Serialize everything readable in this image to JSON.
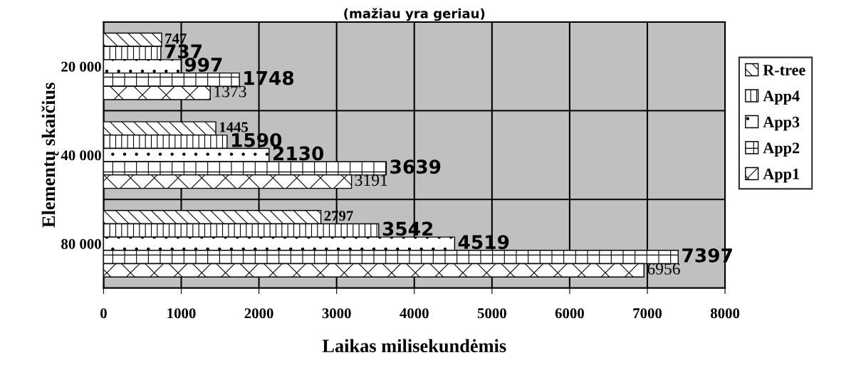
{
  "chart_data": {
    "type": "bar",
    "orientation": "horizontal",
    "title": "(mažiau yra geriau)",
    "xlabel": "Laikas milisekundėmis",
    "ylabel": "Elementų skaičius",
    "categories": [
      "20 000",
      "40 000",
      "80 000"
    ],
    "series": [
      {
        "name": "R-tree",
        "color": "#000000",
        "values": [
          747,
          1445,
          2797
        ]
      },
      {
        "name": "App4",
        "color": "#000000",
        "values": [
          737,
          1590,
          3542
        ]
      },
      {
        "name": "App3",
        "color": "#000000",
        "values": [
          997,
          2130,
          4519
        ]
      },
      {
        "name": "App2",
        "color": "#000000",
        "values": [
          1748,
          3639,
          7397
        ]
      },
      {
        "name": "App1",
        "color": "#000000",
        "values": [
          1373,
          3191,
          6956
        ]
      }
    ],
    "xlim": [
      0,
      8000
    ],
    "xticks": [
      0,
      1000,
      2000,
      3000,
      4000,
      5000,
      6000,
      7000,
      8000
    ],
    "grid": true,
    "legend": "right",
    "data_labels": true
  }
}
